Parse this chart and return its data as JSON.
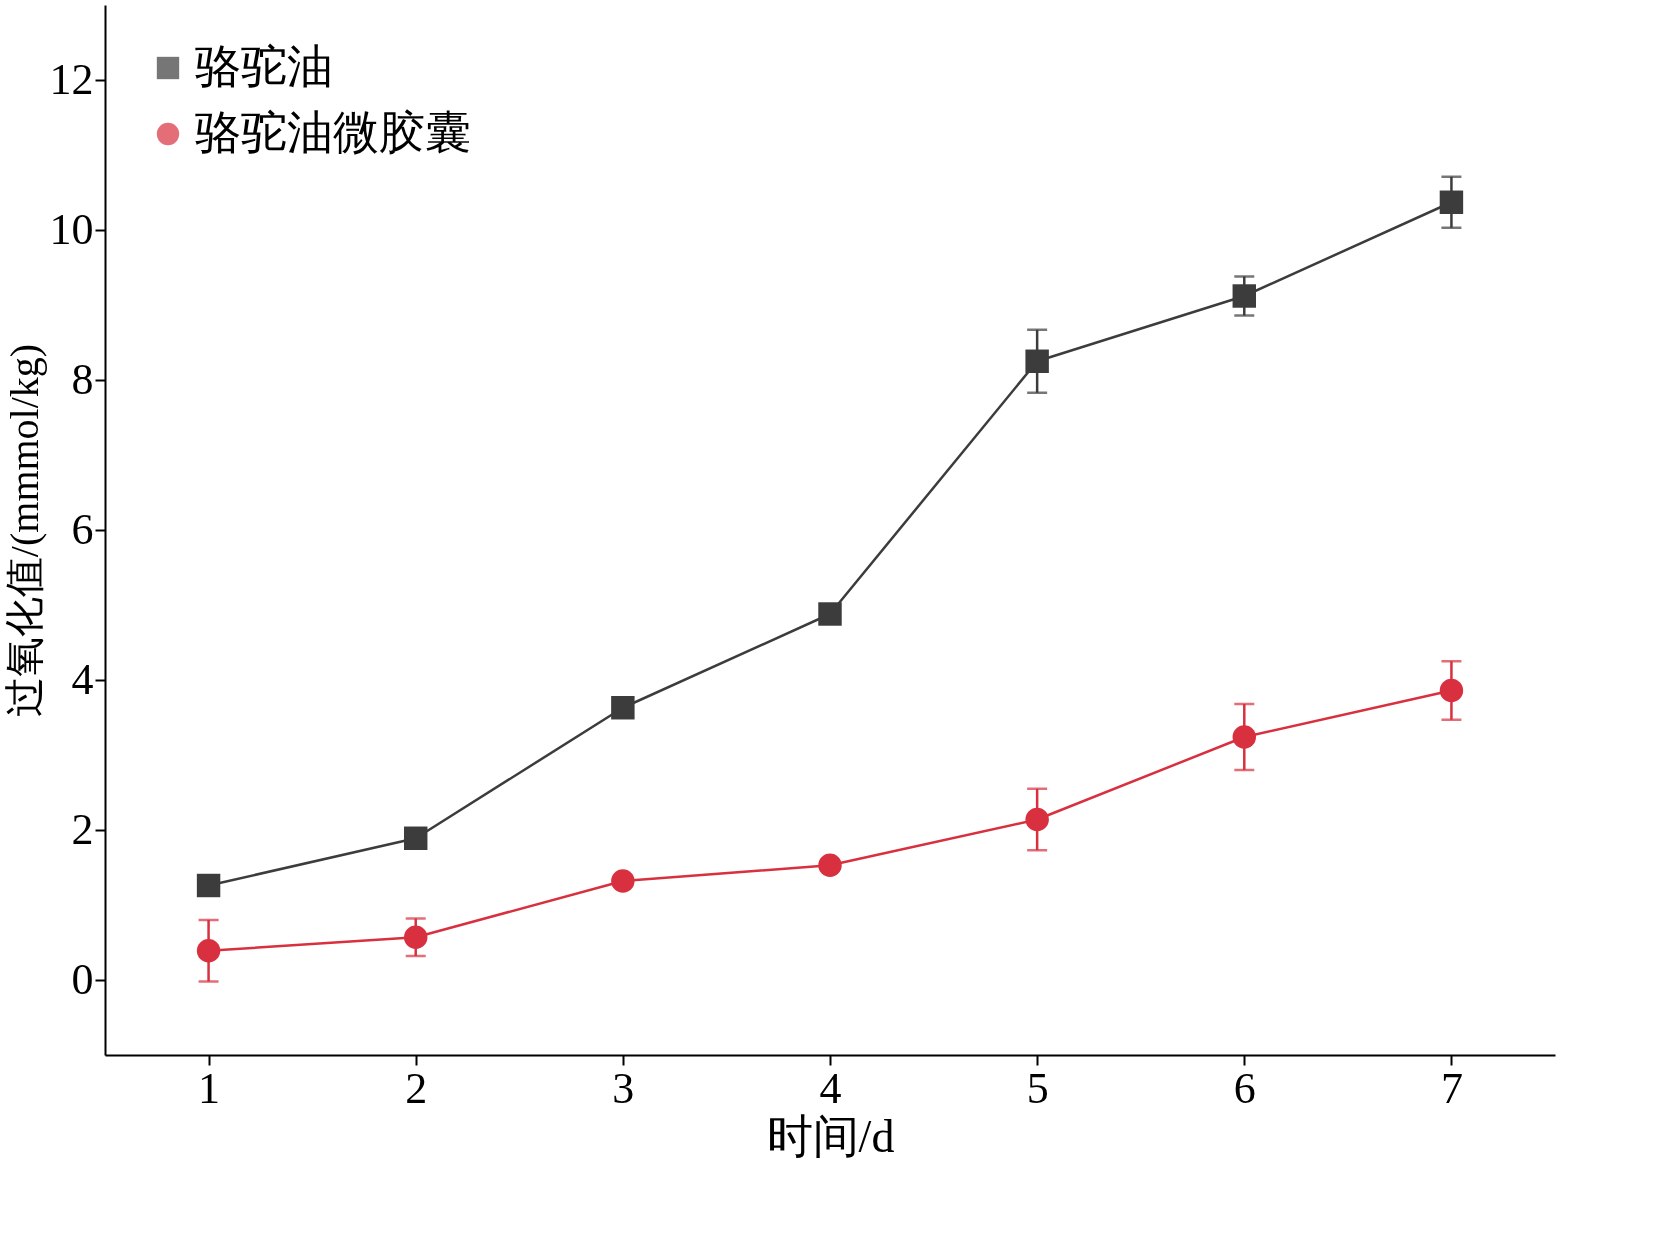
{
  "chart_data": {
    "type": "line",
    "xlabel": "时间/d",
    "ylabel": "过氧化值/(mmmol/kg)",
    "x": [
      1,
      2,
      3,
      4,
      5,
      6,
      7
    ],
    "series": [
      {
        "name": "骆驼油",
        "color": "#3c3c3c",
        "marker": "square",
        "values": [
          1.26,
          1.89,
          3.63,
          4.88,
          8.25,
          9.12,
          10.37
        ],
        "errors": [
          null,
          null,
          null,
          null,
          0.42,
          0.26,
          0.34
        ]
      },
      {
        "name": "骆驼油微胶囊",
        "color": "#d8303f",
        "marker": "circle",
        "values": [
          0.39,
          0.57,
          1.32,
          1.53,
          2.14,
          3.24,
          3.86
        ],
        "errors": [
          0.41,
          0.25,
          null,
          null,
          0.41,
          0.44,
          0.39
        ]
      }
    ],
    "xlim": [
      0.5,
      7.5
    ],
    "xticks": [
      1,
      2,
      3,
      4,
      5,
      6,
      7
    ],
    "ylim": [
      -1,
      13
    ],
    "yticks": [
      0,
      2,
      4,
      6,
      8,
      10,
      12
    ],
    "grid": false,
    "legend": "top left",
    "line_style": "solid"
  }
}
